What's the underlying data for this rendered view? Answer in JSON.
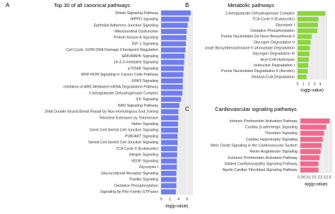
{
  "chart_data": [
    {
      "type": "bar",
      "orientation": "horizontal",
      "panel_label": "A",
      "title": "Top 30 of all canonical pathways",
      "x_label": "-log(p-value)",
      "color": "#6f7df0",
      "grid": true,
      "categories": [
        "Sirtuin Signaling Pathway",
        "HIPPO signaling",
        "Epithelial Adherens Junction Signaling",
        "Mitochondrial Dysfunction",
        "Protein Kinase A Signaling",
        "IGF-1 Signaling",
        "Cell Cycle: G2/M DNA Damage Checkpoint Regulation",
        "ERK/MAPK Signaling",
        "14-3-3-mediated Signaling",
        "p70S6K Signaling",
        "MSP-RON Signaling in Cancer Cells Pathway",
        "ERK5 Signaling",
        "Inhibition of ARE-Mediated mRNA Degradation Pathway",
        "2-ketoglutarate Dehydrogenase Complex",
        "ILK Signaling",
        "NAD Signaling Pathway",
        "DNA Double-Strand Break Repair by Non-Homologous End Joining",
        "Telomere Extension by Telomerase",
        "Netrin Signaling",
        "Germ Cell-Sertoli Cell Junction Signaling",
        "PI3K/AKT Signaling",
        "Sertoli Cell-Sertoli Cell Junction Signaling",
        "TCA Cycle II (Eukaryotic)",
        "Integrin Signaling",
        "VEGF Signaling",
        "Glycolysis I",
        "Glucocorticoid Receptor Signaling",
        "Paxillin Signaling",
        "Oxidative Phosphorylation",
        "Signaling by Rho Family GTPases"
      ],
      "values": [
        6.8,
        6.4,
        6.1,
        5.9,
        5.8,
        5.7,
        5.6,
        5.4,
        5.3,
        5.2,
        5.1,
        5.0,
        5.0,
        4.9,
        4.6,
        4.2,
        4.0,
        4.0,
        3.9,
        3.9,
        3.8,
        3.8,
        3.7,
        3.7,
        3.6,
        3.6,
        3.5,
        3.5,
        3.5,
        3.4
      ],
      "xlim": [
        0,
        7
      ],
      "xticks": [
        0,
        2,
        4,
        6
      ]
    },
    {
      "type": "bar",
      "orientation": "horizontal",
      "panel_label": "B",
      "title": "Metabolic pathways",
      "x_label": "-log(p-value)",
      "color": "#8cd63c",
      "grid": true,
      "categories": [
        "2-ketoglutarate Dehydrogenase Complex",
        "TCA Cycle II (Eukaryotic)",
        "Glycolysis I",
        "Oxidative Phosphorylation",
        "Purine Nucleotides De Novo Biosynthesis II",
        "Glycogen Degradation II",
        "Urate Biosynthesis/Inosine 5'-phosphate Degradation",
        "Glycogen Degradation III",
        "Acyl-CoA Hydrolysis",
        "Isoleucine Degradation I",
        "Purine Nucleotides Degradation II (Aerobic)",
        "Glutaryl-CoA Degradation"
      ],
      "values": [
        4.9,
        3.7,
        3.6,
        3.5,
        2.5,
        2.3,
        2.2,
        2.1,
        2.0,
        1.9,
        1.8,
        1.6
      ],
      "xlim": [
        0,
        5
      ],
      "xticks": [
        0,
        1,
        2,
        3,
        4
      ]
    },
    {
      "type": "bar",
      "orientation": "horizontal",
      "panel_label": "C",
      "title": "Cardiovascular signaling pathways",
      "x_label": "-log(p-value)",
      "color": "#f4688e",
      "grid": true,
      "categories": [
        "Intrinsic Prothrombin Activation Pathway",
        "Cardiac β-adrenergic Signaling",
        "Thrombin Signaling",
        "Cardiac Hypertrophy Signaling",
        "Nitric Oxide Signaling in the Cardiovascular System",
        "Renin-Angiotensin Signaling",
        "Extrinsic Prothrombin Activation Pathway",
        "Dilated Cardiomyopathy Signaling Pathway",
        "Apelin Cardiac Fibroblast Signaling Pathway"
      ],
      "values": [
        2.6,
        2.3,
        2.1,
        2.0,
        1.9,
        1.8,
        1.7,
        1.6,
        1.6
      ],
      "xlim": [
        0,
        2.7
      ],
      "xticks": [
        {
          "value": 0,
          "label": "0.0"
        },
        0.5,
        {
          "value": 1,
          "label": "1.0"
        },
        1.5,
        {
          "value": 2,
          "label": "2.0"
        },
        2.5
      ]
    }
  ]
}
